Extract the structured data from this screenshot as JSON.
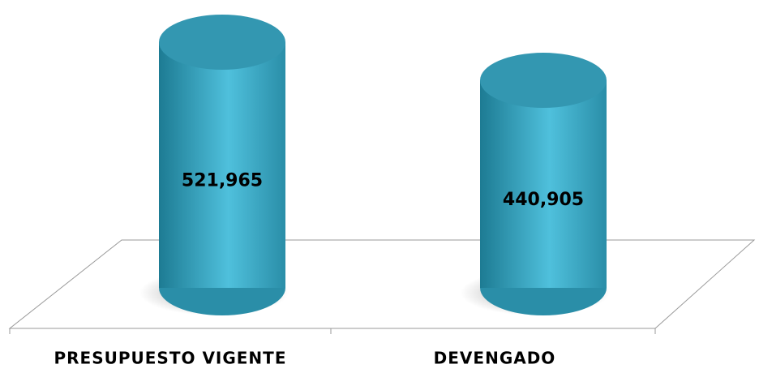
{
  "chart_data": {
    "type": "cylinder",
    "categories": [
      "PRESUPUESTO VIGENTE",
      "DEVENGADO"
    ],
    "values": [
      521965,
      440905
    ],
    "value_labels": [
      "521,965",
      "440,905"
    ],
    "color": "#3aa6c3"
  }
}
